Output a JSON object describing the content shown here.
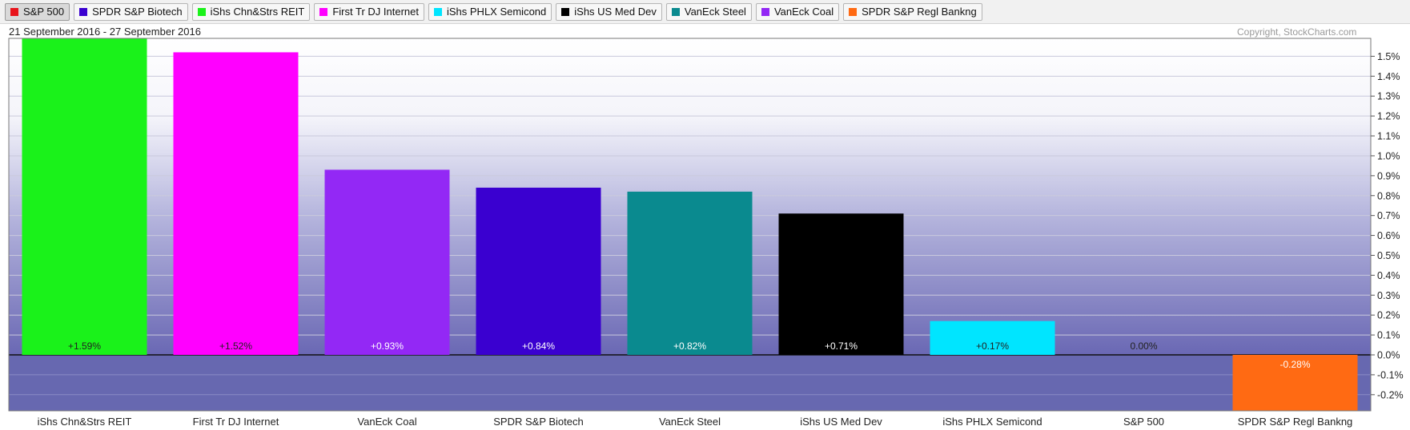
{
  "legend": [
    {
      "label": "S&P 500",
      "color": "#e8141b",
      "active": true
    },
    {
      "label": "SPDR S&P Biotech",
      "color": "#3a00d0"
    },
    {
      "label": "iShs Chn&Strs REIT",
      "color": "#1af21a"
    },
    {
      "label": "First Tr DJ Internet",
      "color": "#ff00ff"
    },
    {
      "label": "iShs PHLX Semicond",
      "color": "#00e5ff"
    },
    {
      "label": "iShs US Med Dev",
      "color": "#000000"
    },
    {
      "label": "VanEck Steel",
      "color": "#0a8a8f"
    },
    {
      "label": "VanEck Coal",
      "color": "#9328f5"
    },
    {
      "label": "SPDR S&P Regl Bankng",
      "color": "#ff6a13"
    }
  ],
  "date_range": "21 September 2016 - 27 September 2016",
  "copyright": "Copyright, StockCharts.com",
  "chart_data": {
    "type": "bar",
    "categories": [
      "iShs Chn&Strs REIT",
      "First Tr DJ Internet",
      "VanEck Coal",
      "SPDR S&P Biotech",
      "VanEck Steel",
      "iShs US Med Dev",
      "iShs PHLX Semicond",
      "S&P 500",
      "SPDR S&P Regl Bankng"
    ],
    "values": [
      1.59,
      1.52,
      0.93,
      0.84,
      0.82,
      0.71,
      0.17,
      0.0,
      -0.28
    ],
    "value_labels": [
      "+1.59%",
      "+1.52%",
      "+0.93%",
      "+0.84%",
      "+0.82%",
      "+0.71%",
      "+0.17%",
      "0.00%",
      "-0.28%"
    ],
    "colors": [
      "#1af21a",
      "#ff00ff",
      "#9328f5",
      "#3a00d0",
      "#0a8a8f",
      "#000000",
      "#00e5ff",
      "#e8141b",
      "#ff6a13"
    ],
    "label_colors": [
      "#222222",
      "#222222",
      "#ffffff",
      "#ffffff",
      "#ffffff",
      "#ffffff",
      "#222222",
      "#222222",
      "#ffffff"
    ],
    "y_ticks": [
      1.5,
      1.4,
      1.3,
      1.2,
      1.1,
      1.0,
      0.9,
      0.8,
      0.7,
      0.6,
      0.5,
      0.4,
      0.3,
      0.2,
      0.1,
      0.0,
      -0.1,
      -0.2
    ],
    "y_tick_labels": [
      "1.5%",
      "1.4%",
      "1.3%",
      "1.2%",
      "1.1%",
      "1.0%",
      "0.9%",
      "0.8%",
      "0.7%",
      "0.6%",
      "0.5%",
      "0.4%",
      "0.3%",
      "0.2%",
      "0.1%",
      "0.0%",
      "-0.1%",
      "-0.2%"
    ],
    "ylim": [
      -0.28,
      1.59
    ],
    "grid": true,
    "axis_side": "right"
  }
}
